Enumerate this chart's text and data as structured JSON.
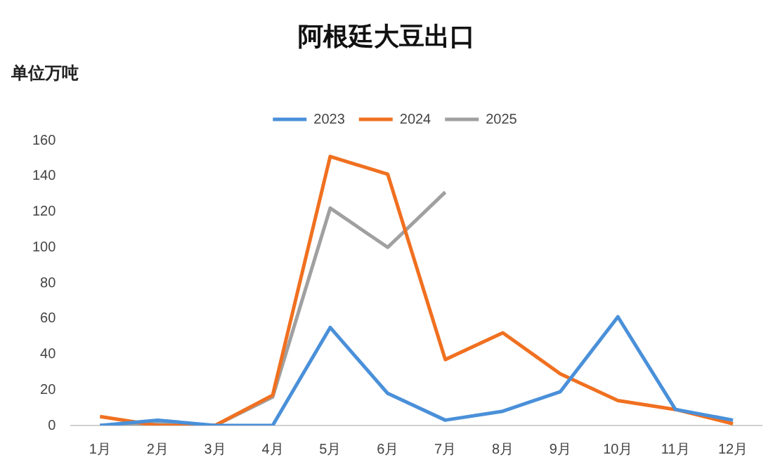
{
  "chart_data": {
    "type": "line",
    "title": "阿根廷大豆出口",
    "ylabel": "单位万吨",
    "categories": [
      "1月",
      "2月",
      "3月",
      "4月",
      "5月",
      "6月",
      "7月",
      "8月",
      "9月",
      "10月",
      "11月",
      "12月"
    ],
    "series": [
      {
        "name": "2023",
        "color": "#4a90d9",
        "values": [
          0,
          3,
          0,
          0,
          55,
          18,
          3,
          8,
          19,
          61,
          9,
          3
        ]
      },
      {
        "name": "2024",
        "color": "#f07020",
        "values": [
          5,
          0,
          0,
          17,
          151,
          141,
          37,
          52,
          29,
          14,
          9,
          1
        ]
      },
      {
        "name": "2025",
        "color": "#a0a0a0",
        "values": [
          0,
          1,
          0,
          16,
          122,
          100,
          131,
          null,
          null,
          null,
          null,
          null
        ]
      }
    ],
    "ylim": [
      0,
      160
    ],
    "yticks": [
      0,
      20,
      40,
      60,
      80,
      100,
      120,
      140,
      160
    ],
    "grid": false,
    "legend": "top",
    "marker": "none",
    "line_style": "solid"
  }
}
